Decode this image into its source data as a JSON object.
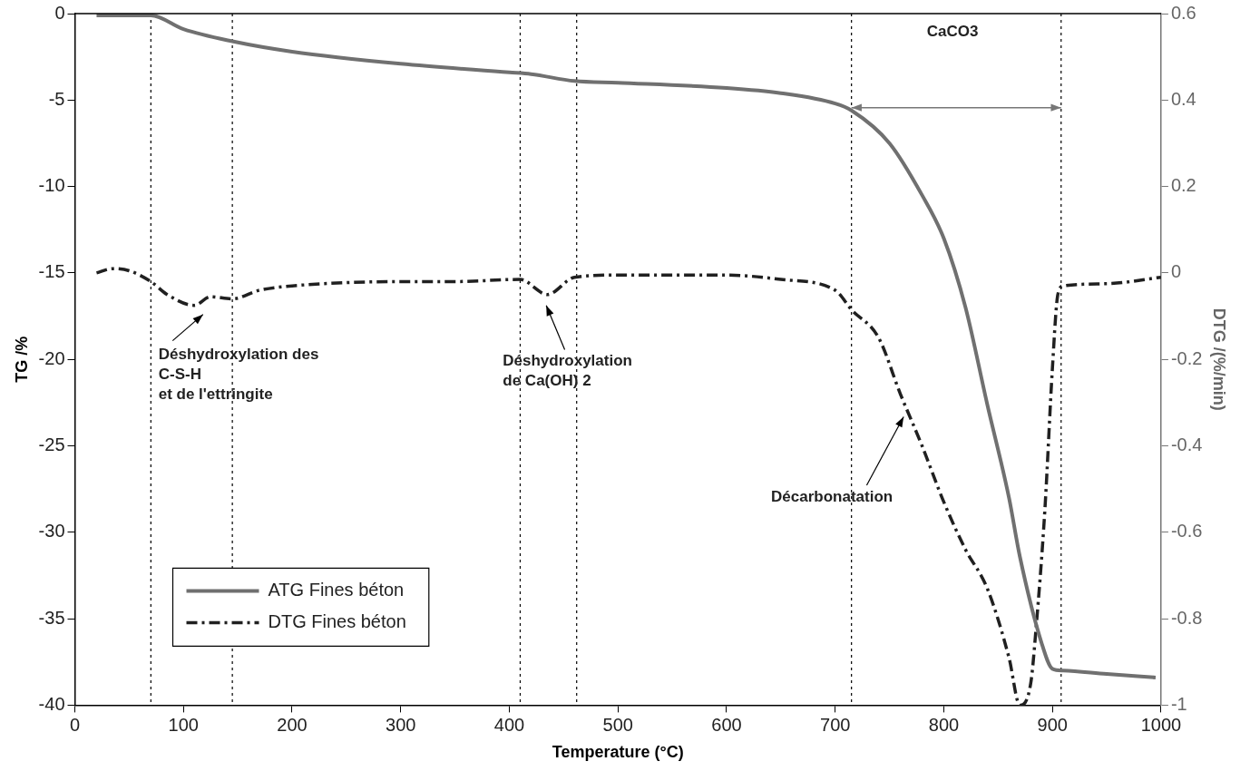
{
  "chart_data": {
    "type": "line",
    "xlabel": "Temperature (°C)",
    "ylabel": "TG /%",
    "y2label": "DTG /(%/min)",
    "xlim": [
      0,
      1000
    ],
    "xticks": [
      0,
      100,
      200,
      300,
      400,
      500,
      600,
      700,
      800,
      900,
      1000
    ],
    "ylim": [
      -40,
      0
    ],
    "yticks": [
      -40,
      -35,
      -30,
      -25,
      -20,
      -15,
      -10,
      -5,
      0
    ],
    "y2lim": [
      -1,
      0.6
    ],
    "y2ticks": [
      -1,
      -0.8,
      -0.6,
      -0.4,
      -0.2,
      0,
      0.2,
      0.4,
      0.6
    ],
    "grid": false,
    "legend": "bottom left",
    "marker": "none",
    "series": [
      {
        "name": "ATG Fines béton",
        "color": "#707070",
        "line_style": "solid",
        "x": [
          20,
          70,
          100,
          145,
          200,
          300,
          400,
          420,
          460,
          500,
          600,
          650,
          700,
          715,
          750,
          780,
          800,
          820,
          840,
          860,
          870,
          890,
          900,
          910,
          950,
          995
        ],
        "values": [
          -0.1,
          -0.1,
          -0.9,
          -1.6,
          -2.2,
          -2.9,
          -3.4,
          -3.5,
          -3.9,
          -4.0,
          -4.3,
          -4.6,
          -5.2,
          -5.6,
          -7.5,
          -10.5,
          -13,
          -17,
          -22.6,
          -28,
          -31.4,
          -36.4,
          -37.9,
          -38,
          -38.2,
          -38.4
        ]
      },
      {
        "name": "DTG Fines béton",
        "color": "#202020",
        "line_style": "dashdot",
        "axis": "y2",
        "x": [
          20,
          35,
          50,
          70,
          85,
          110,
          125,
          145,
          170,
          200,
          300,
          350,
          410,
          435,
          460,
          500,
          600,
          650,
          700,
          715,
          740,
          760,
          780,
          800,
          820,
          840,
          860,
          870,
          880,
          885,
          893,
          900,
          905,
          910,
          950,
          1000
        ],
        "values": [
          0,
          0.01,
          0.005,
          -0.02,
          -0.05,
          -0.075,
          -0.055,
          -0.06,
          -0.04,
          -0.03,
          -0.02,
          -0.02,
          -0.015,
          -0.05,
          -0.01,
          -0.005,
          -0.005,
          -0.015,
          -0.04,
          -0.085,
          -0.15,
          -0.28,
          -0.4,
          -0.53,
          -0.64,
          -0.73,
          -0.89,
          -1,
          -0.95,
          -0.82,
          -0.55,
          -0.22,
          -0.05,
          -0.03,
          -0.025,
          -0.01
        ]
      }
    ],
    "ref_lines": [
      {
        "axis": "x",
        "value": 70,
        "line_style": "dotted"
      },
      {
        "axis": "x",
        "value": 145,
        "line_style": "dotted"
      },
      {
        "axis": "x",
        "value": 410,
        "line_style": "dotted"
      },
      {
        "axis": "x",
        "value": 462,
        "line_style": "dotted"
      },
      {
        "axis": "x",
        "value": 715,
        "line_style": "dotted"
      },
      {
        "axis": "x",
        "value": 908,
        "line_style": "dotted"
      }
    ],
    "annotations": [
      "Déshydroxylation des\nC-S-H\net de l'ettringite",
      "Déshydroxylation\nde Ca(OH) 2",
      "Décarbonatation",
      "CaCO3"
    ]
  }
}
